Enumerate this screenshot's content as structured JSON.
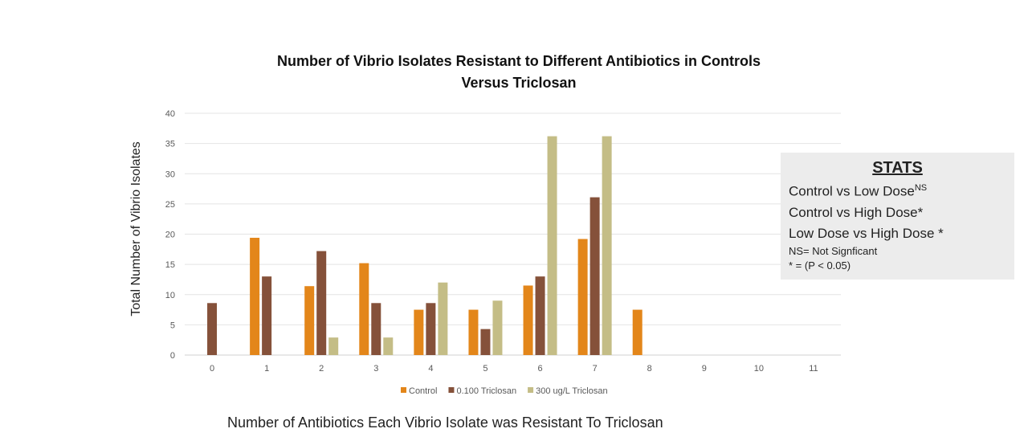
{
  "chart_data": {
    "type": "bar",
    "title": "Number of Vibrio Isolates Resistant to Different Antibiotics in Controls Versus Triclosan",
    "title_lines": [
      "Number of Vibrio Isolates Resistant to Different Antibiotics in Controls",
      "Versus Triclosan"
    ],
    "xlabel": "Number of Antibiotics Each Vibrio Isolate was Resistant To Triclosan",
    "ylabel": "Total Number of Vibrio Isolates",
    "ylim": [
      0,
      40
    ],
    "yticks": [
      0,
      5,
      10,
      15,
      20,
      25,
      30,
      35,
      40
    ],
    "categories": [
      "0",
      "1",
      "2",
      "3",
      "4",
      "5",
      "6",
      "7",
      "8",
      "9",
      "10",
      "11"
    ],
    "grid": true,
    "legend_position": "bottom",
    "series": [
      {
        "name": "Control",
        "color": "#e3861a",
        "values": [
          0,
          19.4,
          11.4,
          15.2,
          7.5,
          7.5,
          11.5,
          19.2,
          7.5,
          0,
          0,
          0
        ]
      },
      {
        "name": "0.100 Triclosan",
        "color": "#85513a",
        "values": [
          8.6,
          13,
          17.2,
          8.6,
          8.6,
          4.3,
          13,
          26.1,
          0,
          0,
          0,
          0
        ]
      },
      {
        "name": "300 ug/L Triclosan",
        "color": "#c4bd86",
        "values": [
          0,
          0,
          2.9,
          2.9,
          12,
          9,
          36.2,
          36.2,
          0,
          0,
          0,
          0
        ]
      }
    ]
  },
  "stats": {
    "heading": "STATS",
    "lines": [
      {
        "text": "Control vs Low Dose",
        "sup": "NS"
      },
      {
        "text": "Control vs High Dose*",
        "sup": ""
      },
      {
        "text": "Low Dose vs High Dose *",
        "sup": ""
      }
    ],
    "notes": [
      "NS= Not Signficant",
      "* = (P < 0.05)"
    ]
  }
}
